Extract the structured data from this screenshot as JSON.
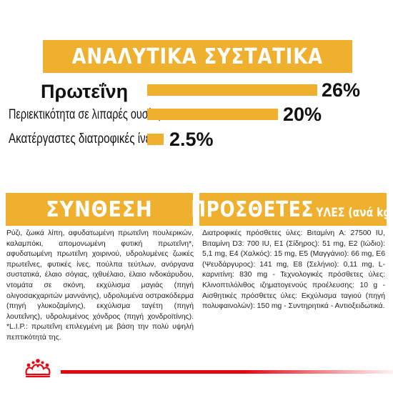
{
  "header": {
    "title": "ΑΝΑΛΥΤΙΚΑ ΣΥΣΤΑΤΙΚΑ"
  },
  "nutrients": [
    {
      "label": "Πρωτεΐνη",
      "value": "26%",
      "fraction": 0.26
    },
    {
      "label": "Περιεκτικότητα σε λιπαρές ουσίες",
      "value": "20%",
      "fraction": 0.2
    },
    {
      "label": "Ακατέργαστες διατροφικές ίνες",
      "value": "2.5%",
      "fraction": 0.025
    }
  ],
  "composition": {
    "title": "ΣΥΝΘΕΣΗ",
    "text": "Ρύζι, ζωικά λίπη, αφυδατωμένη πρωτεΐνη πουλερικών, καλαμπόκι, απομονωμένη φυτική πρωτεΐνη*, αφυδατωμένη πρωτεΐνη χοιρινού, υδρολυμένες ζωικές πρωτεΐνες, φυτικές ίνες, πούλπα τεύτλων, ανόργανα συστατικά, έλαιο σόγιας, ιχθυέλαιο, έλαιο ινδοκάρυδου, ντομάτα σε σκόνη, εκχύλισμα μαγιάς (πηγή ολιγοσακχαριτών μαννάνης), υδρολυμένα οστρακόδερμα (πηγή γλυκοζαμίνης), εκχύλισμα ταγέτη (πηγή λουτεΐνης), υδρολυμένος χόνδρος (πηγή χονδροϊτίνης). *L.I.P.: πρωτεΐνη επιλεγμένη με βάση την πολύ υψηλή πεπτικότητά της."
  },
  "additives": {
    "title": "ΠΡΟΣΘΕΤΕΣ",
    "subtitle": "ΥΛΕΣ (ανά kg)",
    "text": "Διατροφικές πρόσθετες ύλες: Βιταμίνη A: 27500 IU, Βιταμίνη D3: 700 IU, E1 (Σίδηρος): 51 mg, E2 (Ιώδιο): 5,1 mg, E4 (Χαλκός): 15 mg, E5 (Μαγγάνιο): 66 mg, E6 (Ψευδάργυρος): 141 mg, E8 (Σελήνιο): 0,11 mg, L-καρνιτίνη: 830 mg - Τεχνολογικές πρόσθετες ύλες: Κλινοπτιλόλιθος ιζηματογενούς προέλευσης: 10 g - Αισθητικές πρόσθετες ύλες: Εκχύλισμα ταγιού (πηγή πολυφαινολών): 150 mg - Συντηρητικά - Αντιοξειδωτικά."
  },
  "brand": {
    "logo": "royal-canin-crown",
    "accent_color": "#efb02f",
    "brand_color": "#e30613"
  }
}
